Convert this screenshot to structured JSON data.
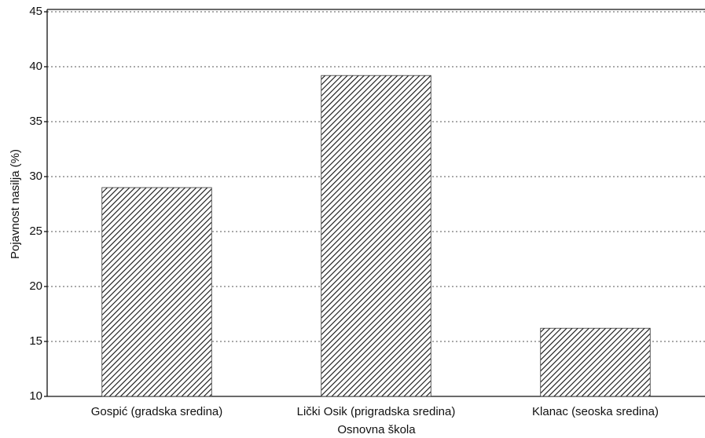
{
  "chart_data": {
    "type": "bar",
    "x_label": "Osnovna škola",
    "y_label": "Pojavnost nasilja (%)",
    "categories": [
      "Gospić (gradska sredina)",
      "Lički Osik (prigradska sredina)",
      "Klanac (seoska sredina)"
    ],
    "values": [
      29,
      39.2,
      16.2
    ],
    "color": "#111111",
    "ylim": [
      10,
      45
    ],
    "yticks": [
      10,
      15,
      20,
      25,
      30,
      35,
      40,
      45
    ],
    "grid": true
  }
}
